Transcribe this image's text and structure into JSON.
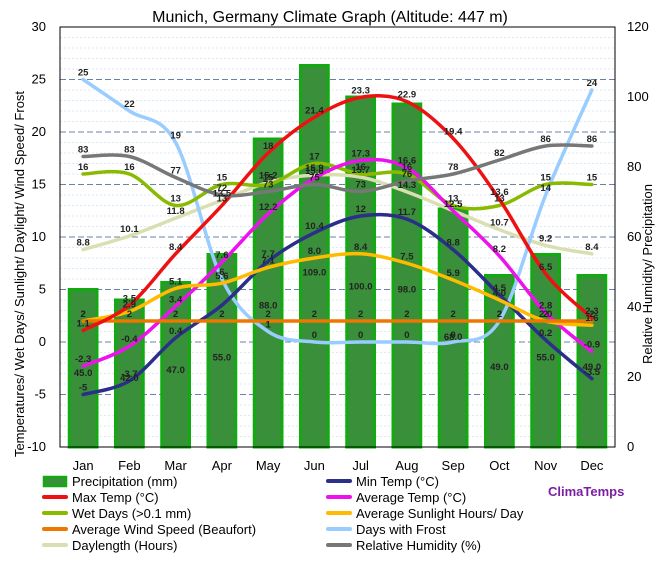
{
  "chart_data": {
    "type": "bar+line",
    "title": "Munich, Germany Climate Graph (Altitude: 447 m)",
    "ylabel_left": "Temperatures/ Wet Days/ Sunlight/ Daylight/ Wind Speed/ Frost",
    "ylabel_right": "Relative Humidity/ Precipitation",
    "categories": [
      "Jan",
      "Feb",
      "Mar",
      "Apr",
      "May",
      "Jun",
      "Jul",
      "Aug",
      "Sep",
      "Oct",
      "Nov",
      "Dec"
    ],
    "ylim_left": [
      -10,
      30
    ],
    "ylim_right": [
      0,
      120
    ],
    "yticks_left": [
      "30",
      "25",
      "20",
      "15",
      "10",
      "5",
      "0",
      "-5",
      "-10"
    ],
    "yticks_right": [
      "120",
      "100",
      "80",
      "60",
      "40",
      "20",
      "0"
    ],
    "brand": "ClimaTemps",
    "series": [
      {
        "name": "Precipitation (mm)",
        "kind": "bar",
        "axis": "right",
        "color": "#3a8f3a",
        "border": "#11aa11",
        "values": [
          45.0,
          42.0,
          47.0,
          55.0,
          88.0,
          109.0,
          100.0,
          98.0,
          68.0,
          49.0,
          55.0,
          49.0
        ],
        "labels": [
          "45.0",
          "42.0",
          "47.0",
          "55.0",
          "88.0",
          "109.0",
          "100.0",
          "98.0",
          "68.0",
          "49.0",
          "55.0",
          "49.0"
        ]
      },
      {
        "name": "Min Temp (°C)",
        "kind": "line",
        "axis": "left",
        "color": "#2b2f8a",
        "values": [
          -5,
          -3.7,
          0.4,
          3.5,
          7.7,
          10.4,
          12,
          11.7,
          8.8,
          4.5,
          0.2,
          -3.5
        ],
        "labels": [
          "-5",
          "-3.7",
          "0.4",
          "",
          "7.7",
          "10.4",
          "12",
          "11.7",
          "8.8",
          "4.5",
          "0.2",
          "-3.5"
        ]
      },
      {
        "name": "Max Temp (°C)",
        "kind": "line",
        "axis": "left",
        "color": "#ee1111",
        "values": [
          1.1,
          3.5,
          8.4,
          13,
          18,
          21.4,
          23.3,
          22.9,
          19.4,
          13.6,
          6.5,
          2.3
        ],
        "labels": [
          "1.1",
          "3.5",
          "8.4",
          "13",
          "18",
          "21.4",
          "23.3",
          "22.9",
          "19.4",
          "13.6",
          "6.5",
          "2.3"
        ]
      },
      {
        "name": "Average Temp (°C)",
        "kind": "line",
        "axis": "left",
        "color": "#ee11ee",
        "values": [
          -2.3,
          -0.4,
          3.4,
          7.6,
          12.2,
          15.6,
          17.3,
          16.6,
          12.5,
          8.2,
          2.8,
          -0.9
        ],
        "labels": [
          "-2.3",
          "-0.4",
          "3.4",
          "7.6",
          "12.2",
          "15.6",
          "17.3",
          "16.6",
          "12.5",
          "8.2",
          "2.8",
          "-0.9"
        ]
      },
      {
        "name": "Wet Days (>0.1 mm)",
        "kind": "line",
        "axis": "left",
        "color": "#88bb00",
        "values": [
          16,
          16,
          13,
          15,
          15,
          17,
          16,
          16,
          13,
          13,
          15,
          15
        ],
        "labels": [
          "16",
          "16",
          "13",
          "15",
          "15",
          "17",
          "16",
          "16",
          "13",
          "13",
          "15",
          "15"
        ]
      },
      {
        "name": "Average Sunlight Hours/ Day",
        "kind": "line",
        "axis": "left",
        "color": "#ffbb00",
        "values": [
          2,
          2.9,
          5.1,
          5.6,
          7.1,
          8.0,
          8.4,
          7.5,
          5.9,
          4.0,
          2.0,
          1.6
        ],
        "labels": [
          "2",
          "2.9",
          "5.1",
          "5.6",
          "7.1",
          "8.0",
          "8.4",
          "7.5",
          "5.9",
          "4.0",
          "2.0",
          "1.6"
        ]
      },
      {
        "name": "Average Wind Speed (Beaufort)",
        "kind": "line",
        "axis": "left",
        "color": "#ee7700",
        "values": [
          2,
          2,
          2,
          2,
          2,
          2,
          2,
          2,
          2,
          2,
          2,
          2
        ],
        "labels": [
          "2",
          "2",
          "2",
          "2",
          "2",
          "2",
          "2",
          "2",
          "2",
          "2",
          "2",
          "2"
        ]
      },
      {
        "name": "Days with Frost",
        "kind": "line",
        "axis": "left",
        "color": "#99ccff",
        "values": [
          25,
          22,
          19,
          6,
          1,
          0,
          0,
          0,
          0,
          2,
          14,
          24
        ],
        "labels": [
          "25",
          "22",
          "19",
          "6",
          "1",
          "0",
          "0",
          "0",
          "0",
          "2",
          "14",
          "24"
        ]
      },
      {
        "name": "Daylength (Hours)",
        "kind": "line",
        "axis": "left",
        "color": "#d9dfb0",
        "values": [
          8.8,
          10.1,
          11.8,
          13.5,
          15.2,
          15.9,
          15.7,
          14.3,
          12.5,
          10.7,
          9.2,
          8.4
        ],
        "labels": [
          "8.8",
          "10.1",
          "11.8",
          "13.5",
          "15.2",
          "15.9",
          "15.7",
          "14.3",
          "12.5",
          "10.7",
          "9.2",
          "8.4"
        ]
      },
      {
        "name": "Relative Humidity (%)",
        "kind": "line",
        "axis": "right",
        "color": "#777777",
        "values": [
          83,
          83,
          77,
          72,
          73,
          75,
          73,
          76,
          78,
          82,
          86,
          86
        ],
        "labels": [
          "83",
          "83",
          "77",
          "72",
          "73",
          "75",
          "73",
          "76",
          "78",
          "82",
          "86",
          "86"
        ]
      }
    ]
  }
}
